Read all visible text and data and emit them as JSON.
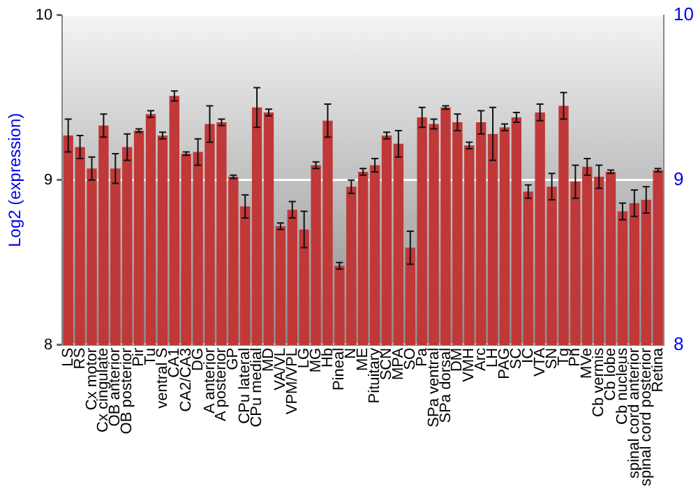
{
  "chart_data": {
    "type": "bar",
    "ylabel": "Log2 (expression)",
    "categories": [
      "LS",
      "RS",
      "Cx motor",
      "Cx cingulate",
      "OB anterior",
      "OB posterior",
      "Pir",
      "Tu",
      "ventral S",
      "CA1",
      "CA2/CA3",
      "DG",
      "A anterior",
      "A posterior",
      "GP",
      "CPu lateral",
      "CPu medial",
      "MD",
      "VA/VL",
      "VPM/VPL",
      "LG",
      "MG",
      "Hb",
      "Pineal",
      "N",
      "ME",
      "Pituitary",
      "SCN",
      "MPA",
      "SO",
      "Pa",
      "SPa ventral",
      "SPa dorsal",
      "DM",
      "VMH",
      "Arc",
      "LH",
      "PAG",
      "SC",
      "IC",
      "VTA",
      "SN",
      "Tg",
      "Pn",
      "MVe",
      "Cb vermis",
      "Cb lobe",
      "Cb nucleus",
      "spinal cord anterior",
      "spinal cord posterior",
      "Retina"
    ],
    "series": [
      {
        "color": "#c03838",
        "values": [
          9.27,
          9.2,
          9.07,
          9.33,
          9.07,
          9.2,
          9.3,
          9.4,
          9.27,
          9.51,
          9.16,
          9.17,
          9.34,
          9.35,
          9.02,
          8.84,
          9.44,
          9.41,
          8.72,
          8.82,
          8.7,
          9.09,
          9.36,
          8.48,
          8.96,
          9.05,
          9.09,
          9.27,
          9.22,
          8.59,
          9.38,
          9.34,
          9.44,
          9.35,
          9.21,
          9.35,
          9.28,
          9.32,
          9.38,
          8.93,
          9.41,
          8.96,
          9.45,
          8.99,
          9.08,
          9.02,
          9.05,
          8.81,
          8.86,
          8.88,
          9.06
        ],
        "errors": [
          0.1,
          0.07,
          0.07,
          0.07,
          0.09,
          0.08,
          0.01,
          0.02,
          0.02,
          0.03,
          0.01,
          0.08,
          0.11,
          0.02,
          0.01,
          0.07,
          0.12,
          0.02,
          0.02,
          0.05,
          0.11,
          0.02,
          0.1,
          0.02,
          0.04,
          0.02,
          0.04,
          0.02,
          0.08,
          0.1,
          0.06,
          0.03,
          0.01,
          0.05,
          0.02,
          0.07,
          0.16,
          0.02,
          0.03,
          0.04,
          0.05,
          0.08,
          0.08,
          0.1,
          0.05,
          0.07,
          0.01,
          0.05,
          0.08,
          0.08,
          0.01
        ]
      }
    ],
    "ylim": [
      8,
      10
    ],
    "yticks": [
      8,
      9,
      10
    ],
    "y2lim": [
      8,
      10
    ],
    "y2ticks": [
      8,
      9,
      10
    ],
    "grid": "y",
    "legend": false
  }
}
